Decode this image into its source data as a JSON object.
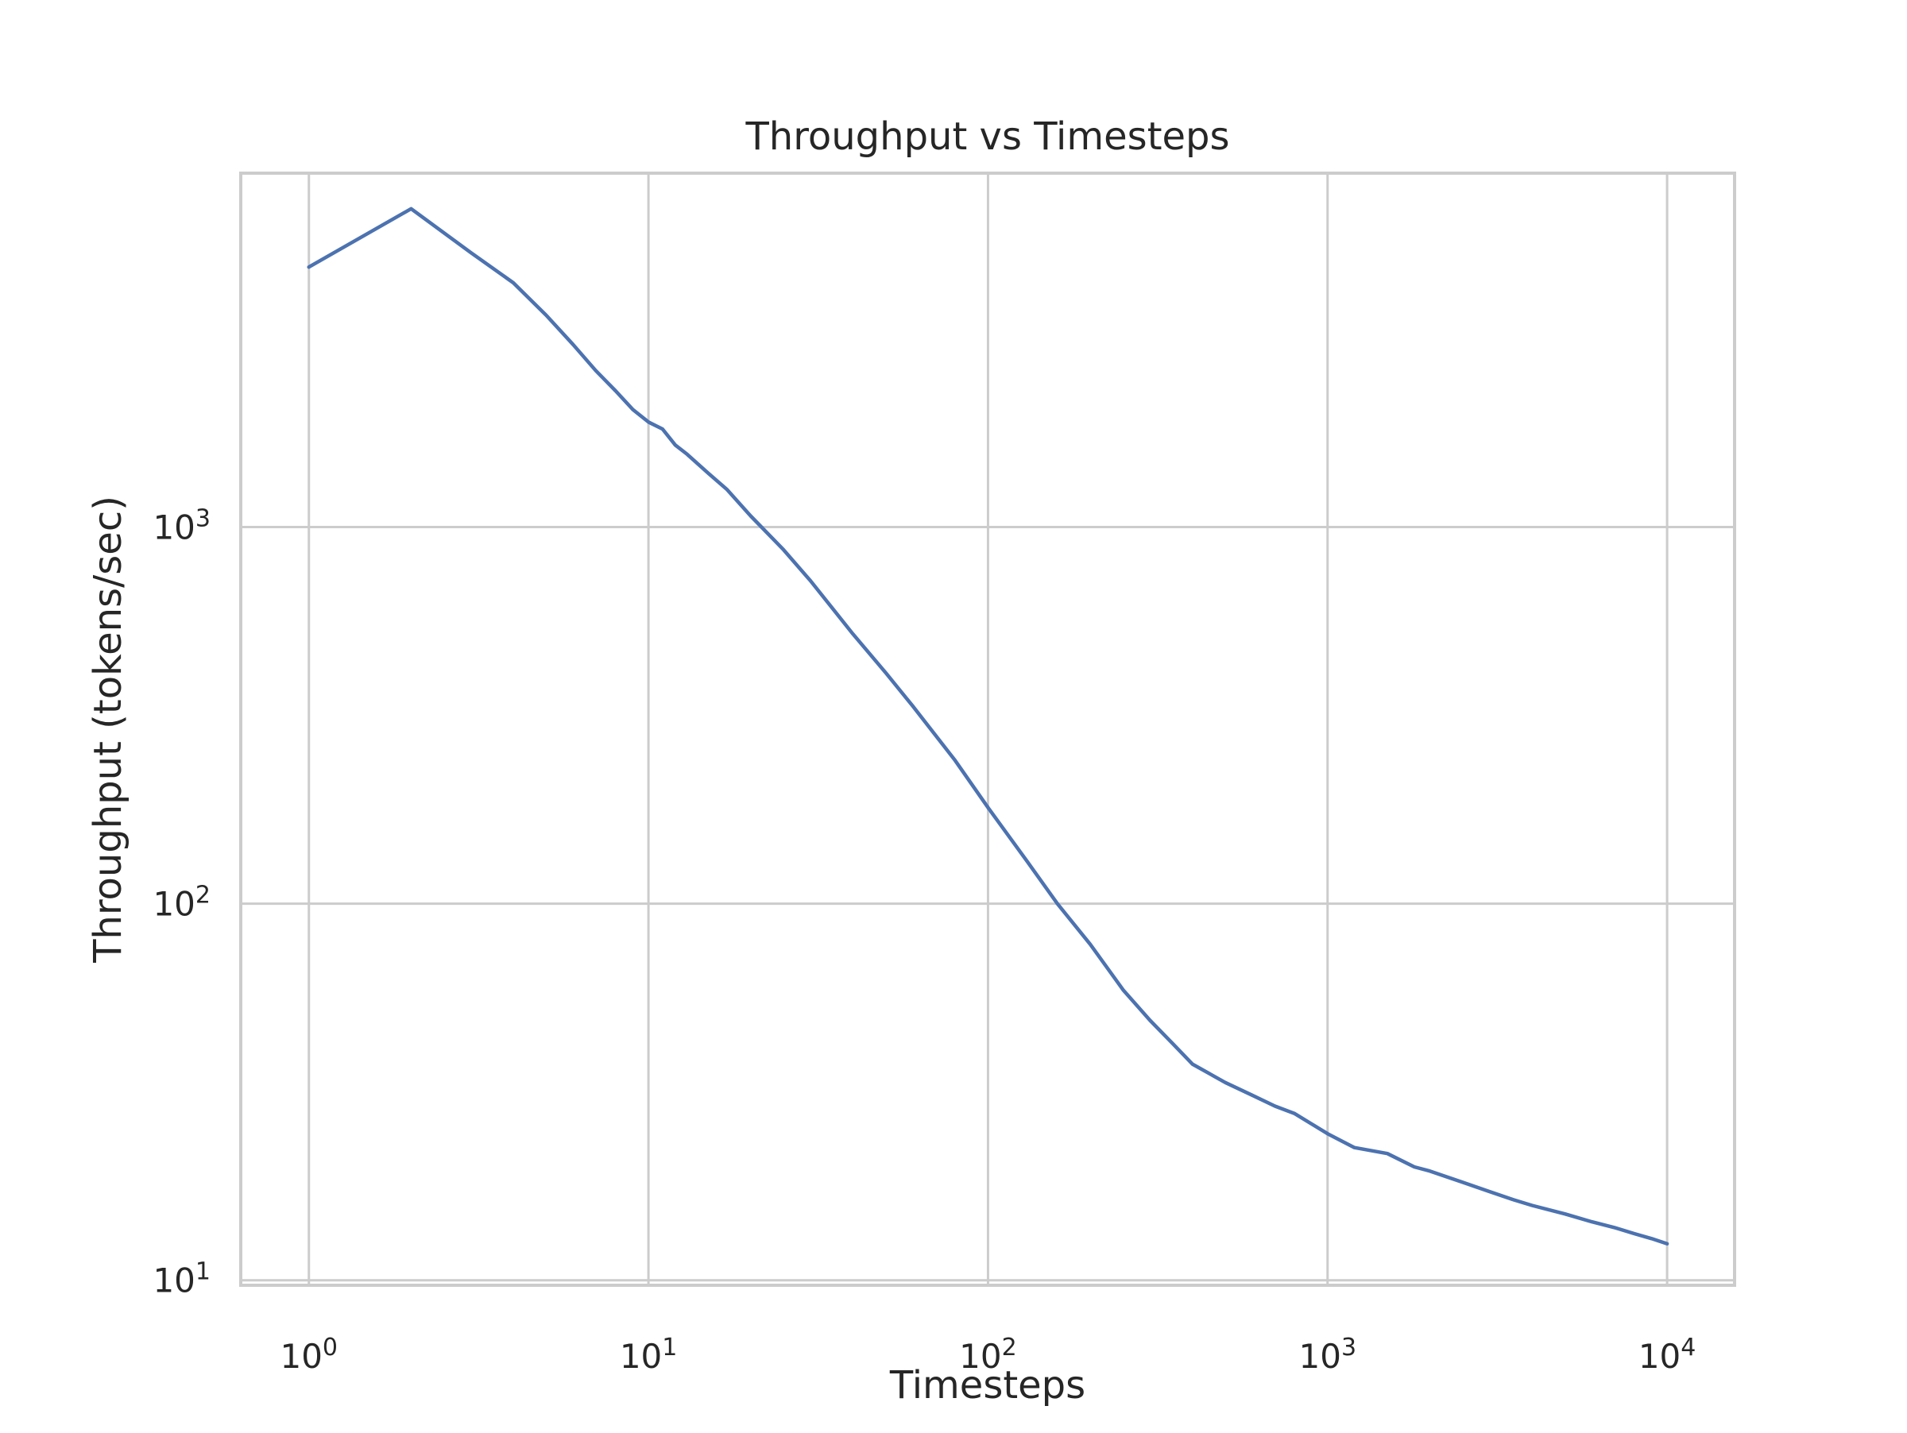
{
  "chart_data": {
    "type": "line",
    "title": "Throughput vs Timesteps",
    "xlabel": "Timesteps",
    "ylabel": "Throughput (tokens/sec)",
    "x_scale": "log",
    "y_scale": "log",
    "xlim": [
      0.63,
      15800
    ],
    "ylim": [
      9.7,
      8700
    ],
    "grid": true,
    "x_ticks": [
      {
        "value": 1,
        "base": "10",
        "exp": "0"
      },
      {
        "value": 10,
        "base": "10",
        "exp": "1"
      },
      {
        "value": 100,
        "base": "10",
        "exp": "2"
      },
      {
        "value": 1000,
        "base": "10",
        "exp": "3"
      },
      {
        "value": 10000,
        "base": "10",
        "exp": "4"
      }
    ],
    "y_ticks": [
      {
        "value": 10,
        "base": "10",
        "exp": "1"
      },
      {
        "value": 100,
        "base": "10",
        "exp": "2"
      },
      {
        "value": 1000,
        "base": "10",
        "exp": "3"
      }
    ],
    "series": [
      {
        "color": "#4c72b0",
        "x": [
          1,
          2,
          3,
          4,
          5,
          6,
          7,
          8,
          9,
          10,
          11,
          12,
          13,
          15,
          17,
          20,
          25,
          30,
          40,
          50,
          60,
          80,
          100,
          130,
          160,
          200,
          250,
          300,
          350,
          400,
          500,
          600,
          700,
          800,
          1000,
          1200,
          1500,
          1800,
          2000,
          2500,
          3000,
          3500,
          4000,
          5000,
          6000,
          7000,
          8000,
          9000,
          10000
        ],
        "y": [
          4900,
          7000,
          5350,
          4450,
          3650,
          3050,
          2600,
          2300,
          2050,
          1900,
          1820,
          1650,
          1560,
          1390,
          1260,
          1070,
          870,
          720,
          520,
          410,
          335,
          240,
          180,
          130,
          100,
          78,
          59,
          49,
          42.5,
          37.5,
          33.5,
          31,
          29,
          27.7,
          24.5,
          22.5,
          21.7,
          20,
          19.5,
          18.2,
          17.2,
          16.4,
          15.8,
          15,
          14.3,
          13.8,
          13.3,
          12.9,
          12.5
        ]
      }
    ]
  }
}
